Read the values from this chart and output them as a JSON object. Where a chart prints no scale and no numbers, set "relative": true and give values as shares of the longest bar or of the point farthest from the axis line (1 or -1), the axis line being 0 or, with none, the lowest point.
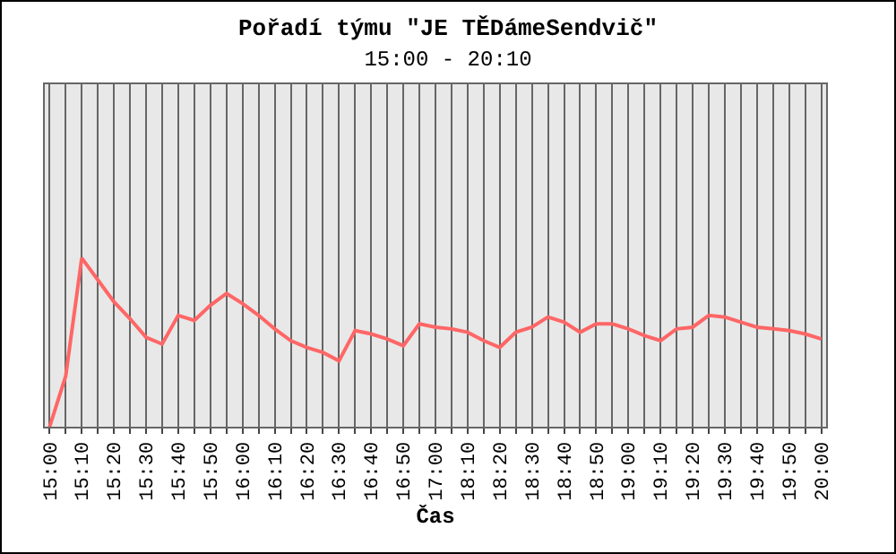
{
  "chart_data": {
    "type": "line",
    "title": "Pořadí týmu \"JE TĚDámeSendvič\"",
    "subtitle": "15:00 - 20:10",
    "xlabel": "Čas",
    "relative": true,
    "grid": "x",
    "marker": "none",
    "line_style": "solid",
    "categories": [
      "15:00",
      null,
      "15:10",
      null,
      "15:20",
      null,
      "15:30",
      null,
      "15:40",
      null,
      "15:50",
      null,
      "16:00",
      null,
      "16:10",
      null,
      "16:20",
      null,
      "16:30",
      null,
      "16:40",
      null,
      "16:50",
      null,
      "17:00",
      null,
      "18:10",
      null,
      "18:20",
      null,
      "18:30",
      null,
      "18:40",
      null,
      "18:50",
      null,
      "19:00",
      null,
      "19:10",
      null,
      "19:20",
      null,
      "19:30",
      null,
      "19:40",
      null,
      "19:50",
      null,
      "20:00"
    ],
    "series": [
      {
        "color": "#ff6666",
        "values": [
          0,
          0.3,
          1,
          0.87,
          0.74,
          0.64,
          0.53,
          0.49,
          0.66,
          0.63,
          0.72,
          0.79,
          0.73,
          0.66,
          0.58,
          0.51,
          0.47,
          0.44,
          0.39,
          0.57,
          0.55,
          0.52,
          0.48,
          0.61,
          0.59,
          0.58,
          0.56,
          0.51,
          0.47,
          0.56,
          0.59,
          0.65,
          0.62,
          0.56,
          0.61,
          0.61,
          0.58,
          0.54,
          0.51,
          0.58,
          0.59,
          0.66,
          0.65,
          0.62,
          0.59,
          0.58,
          0.57,
          0.55,
          0.52
        ]
      }
    ]
  }
}
